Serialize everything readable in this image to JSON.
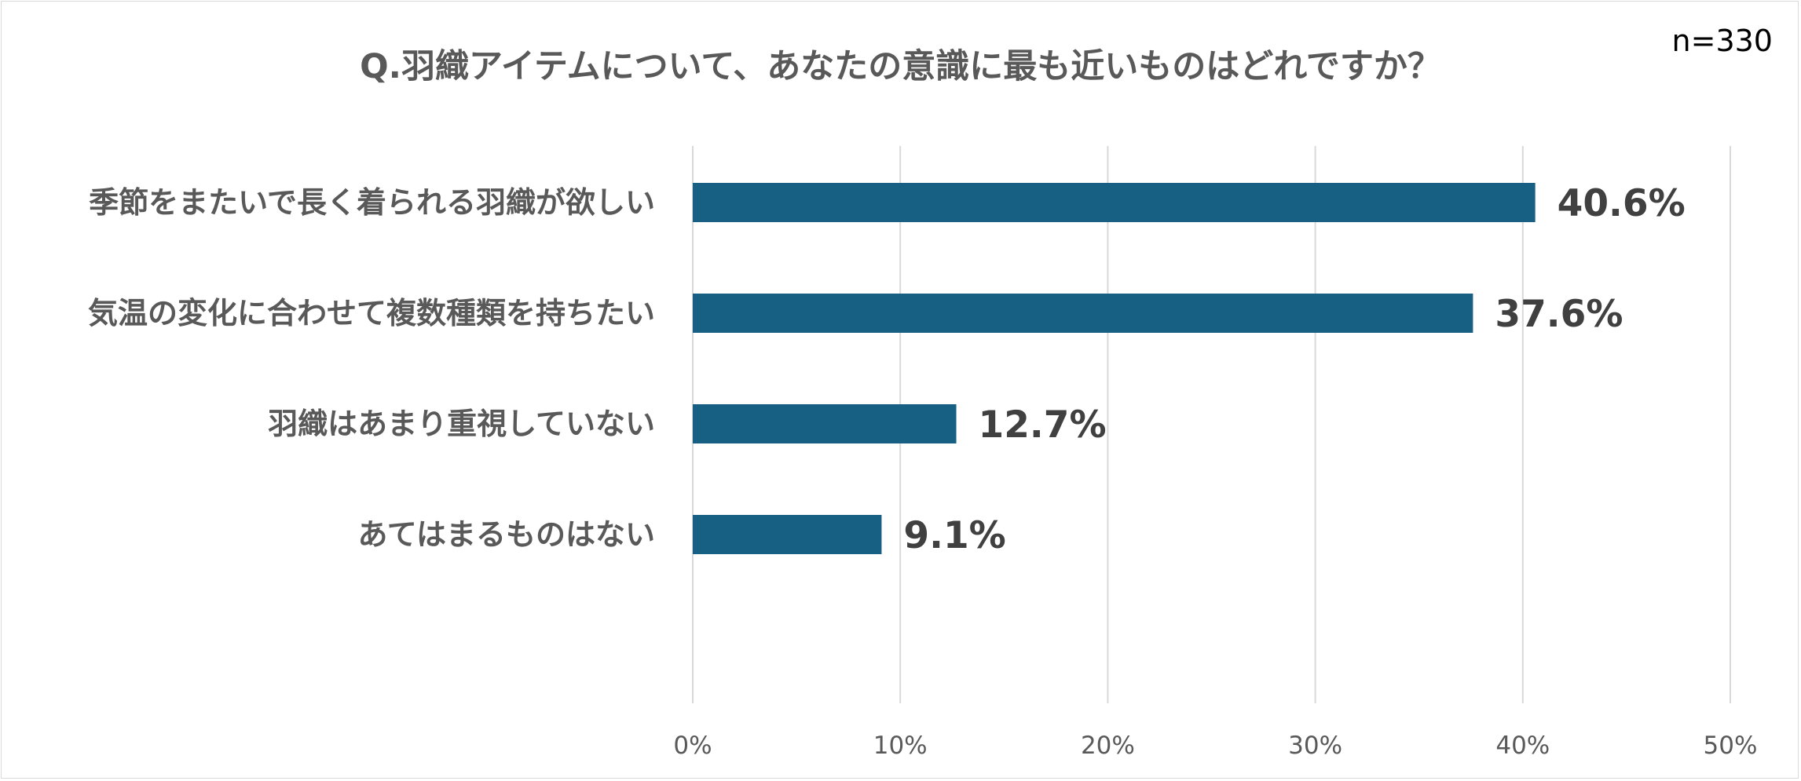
{
  "header": {
    "title": "Q.羽織アイテムについて、あなたの意識に最も近いものはどれですか？",
    "sample_size": "n=330"
  },
  "colors": {
    "bar": "#176083",
    "grid": "#d9d9d9",
    "text": "#595959",
    "value_text": "#404040"
  },
  "chart_data": {
    "type": "bar",
    "orientation": "horizontal",
    "title": "Q.羽織アイテムについて、あなたの意識に最も近いものはどれですか？",
    "categories": [
      "季節をまたいで長く着られる羽織が欲しい",
      "気温の変化に合わせて複数種類を持ちたい",
      "羽織はあまり重視していない",
      "あてはまるものはない"
    ],
    "values": [
      40.6,
      37.6,
      12.7,
      9.1
    ],
    "data_labels": [
      "40.6%",
      "37.6%",
      "12.7%",
      "9.1%"
    ],
    "xlim": [
      0,
      50
    ],
    "x_ticks": [
      0,
      10,
      20,
      30,
      40,
      50
    ],
    "x_tick_labels": [
      "0%",
      "10%",
      "20%",
      "30%",
      "40%",
      "50%"
    ],
    "xlabel": "",
    "ylabel": "",
    "grid": "vertical",
    "legend": "none"
  }
}
